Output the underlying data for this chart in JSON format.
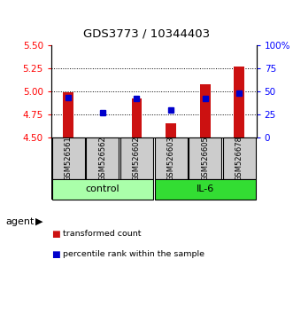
{
  "title": "GDS3773 / 10344403",
  "samples": [
    "GSM526561",
    "GSM526562",
    "GSM526602",
    "GSM526603",
    "GSM526605",
    "GSM526678"
  ],
  "red_values": [
    4.99,
    4.508,
    4.93,
    4.66,
    5.08,
    5.27
  ],
  "blue_values": [
    44,
    27,
    43,
    30,
    43,
    48
  ],
  "y_min": 4.5,
  "y_max": 5.5,
  "y_ticks": [
    4.5,
    4.75,
    5.0,
    5.25,
    5.5
  ],
  "y_right_ticks": [
    0,
    25,
    50,
    75,
    100
  ],
  "y_right_labels": [
    "0",
    "25",
    "50",
    "75",
    "100%"
  ],
  "groups": [
    {
      "label": "control",
      "indices": [
        0,
        1,
        2
      ],
      "color": "#aaffaa"
    },
    {
      "label": "IL-6",
      "indices": [
        3,
        4,
        5
      ],
      "color": "#33dd33"
    }
  ],
  "bar_color": "#cc1111",
  "dot_color": "#0000cc",
  "bar_width": 0.55,
  "sample_bg_color": "#cccccc",
  "agent_label": "agent",
  "legend_items": [
    {
      "label": "transformed count",
      "color": "#cc1111"
    },
    {
      "label": "percentile rank within the sample",
      "color": "#0000cc"
    }
  ]
}
